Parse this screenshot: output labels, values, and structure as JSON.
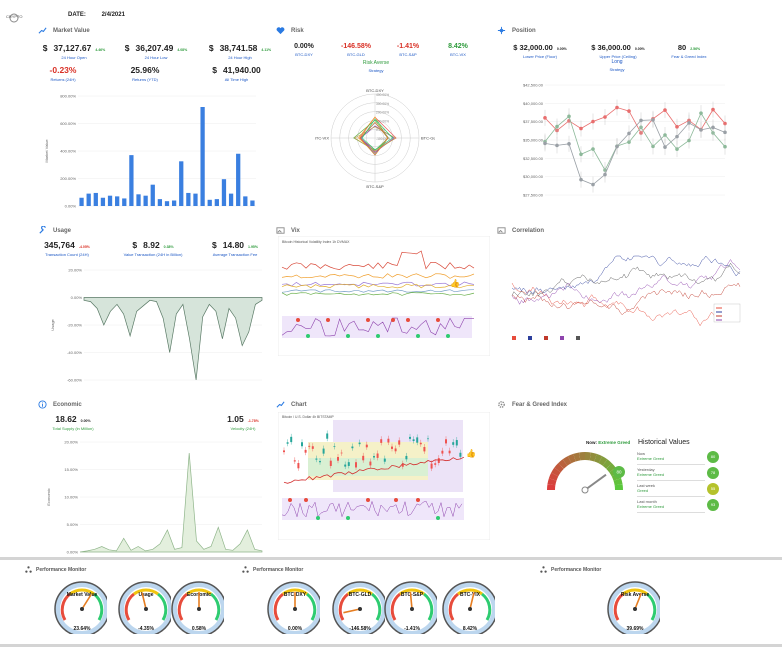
{
  "header": {
    "logo_text": "CRYPTO",
    "date_label": "DATE:",
    "date_value": "2/4/2021"
  },
  "panels": {
    "market_value": {
      "title": "Market Value",
      "kpis": [
        {
          "currency": "$",
          "value": "37,127.67",
          "change": "4.46%",
          "label": "24 Hour Open"
        },
        {
          "currency": "$",
          "value": "36,207.49",
          "change": "4.08%",
          "label": "24 Hour Low"
        },
        {
          "currency": "$",
          "value": "38,741.58",
          "change": "4.11%",
          "label": "24 Hour High"
        },
        {
          "currency": "",
          "value": "-0.23%",
          "change": "",
          "label": "Returns (24H)"
        },
        {
          "currency": "",
          "value": "25.96%",
          "change": "",
          "label": "Returns (YTD)"
        },
        {
          "currency": "$",
          "value": "41,940.00",
          "change": "",
          "label": "All Time High"
        }
      ],
      "chart": {
        "ylabel": "Market Value",
        "yticks": [
          "800.00%",
          "600.00%",
          "400.00%",
          "200.00%",
          "0.00%"
        ],
        "values": [
          60,
          90,
          95,
          60,
          75,
          70,
          55,
          370,
          85,
          75,
          155,
          50,
          35,
          40,
          325,
          95,
          90,
          720,
          45,
          50,
          195,
          90,
          380,
          70,
          40
        ]
      }
    },
    "risk": {
      "title": "Risk",
      "kpis": [
        {
          "value": "0.00%",
          "label": "BTC-DXY",
          "color": "#222"
        },
        {
          "value": "-146.58%",
          "label": "BTC-GLD",
          "color": "#d93025"
        },
        {
          "value": "-1.41%",
          "label": "BTC-S&P",
          "color": "#d93025"
        },
        {
          "value": "8.42%",
          "label": "BTC-VIX",
          "color": "#2e9b3c"
        }
      ],
      "strategy_value": "Risk Averse",
      "strategy_label": "Strategy",
      "radar_axes": [
        "BTC-DXY",
        "BTC-GLD",
        "BTC-S&P",
        "BTC-VIX"
      ],
      "radar_ticks": [
        "400.00%",
        "300.00%",
        "200.00%",
        "100.00%",
        "0.00%",
        "-100.00%"
      ]
    },
    "position": {
      "title": "Position",
      "kpis": [
        {
          "value": "$ 32,000.00",
          "change": "0.00%",
          "label": "Lower Price (Floor)"
        },
        {
          "value": "$ 36,000.00",
          "change": "0.00%",
          "label": "Upper Price (Ceiling)"
        },
        {
          "value": "80",
          "change": "2.56%",
          "label": "Fear & Greed Index"
        }
      ],
      "strategy_value": "Long",
      "strategy_label": "Strategy",
      "yticks": [
        "$42,500.00",
        "$40,000.00",
        "$37,500.00",
        "$35,000.00",
        "$32,500.00",
        "$30,000.00",
        "$27,500.00"
      ]
    },
    "usage": {
      "title": "Usage",
      "kpis": [
        {
          "currency": "",
          "value": "345,764",
          "change": "-4.05%",
          "label": "Transaction Count (24H)"
        },
        {
          "currency": "$",
          "value": "8.92",
          "change": "0.38%",
          "label": "Value Transaction (24H in Billion)"
        },
        {
          "currency": "$",
          "value": "14.80",
          "change": "1.95%",
          "label": "Average Transaction Fee"
        }
      ],
      "chart": {
        "ylabel": "Usage",
        "yticks": [
          "20.00%",
          "0.00%",
          "-20.00%",
          "-40.00%",
          "-60.00%"
        ]
      }
    },
    "vix": {
      "title": "Vix",
      "chart_header": "Bitcoin Historical Volatility Index   1h   DVMAX"
    },
    "correlation": {
      "title": "Correlation"
    },
    "economic": {
      "title": "Economic",
      "kpis": [
        {
          "value": "18.62",
          "change": "0.00%",
          "label": "Total Supply (in Million)"
        },
        {
          "value": "1.05",
          "change": "-1.78%",
          "label": "Velocity (24H)"
        }
      ],
      "chart": {
        "ylabel": "Economic",
        "yticks": [
          "20.00%",
          "15.00%",
          "10.00%",
          "5.00%",
          "0.00%"
        ]
      }
    },
    "chart": {
      "title": "Chart",
      "chart_header": "Bitcoin / U.S. Dollar  4h  BITSTAMP"
    },
    "fear_greed": {
      "title": "Fear & Greed Index",
      "now_label": "Now:",
      "now_value": "Extreme Greed",
      "history_title": "Historical Values",
      "gauge_value": "80",
      "history": [
        {
          "period": "Now",
          "state": "Extreme Greed",
          "value": "80",
          "color": "#5dbb46"
        },
        {
          "period": "Yesterday",
          "state": "Extreme Greed",
          "value": "78",
          "color": "#5dbb46"
        },
        {
          "period": "Last week",
          "state": "Greed",
          "value": "55",
          "color": "#b5c22c"
        },
        {
          "period": "Last month",
          "state": "Extreme Greed",
          "value": "93",
          "color": "#5dbb46"
        }
      ]
    }
  },
  "performance": {
    "title": "Performance Monitor",
    "groups": [
      [
        {
          "label": "Market Value",
          "value": "23.64%",
          "needle": 0.62
        },
        {
          "label": "Usage",
          "value": "-4.35%",
          "needle": 0.45
        },
        {
          "label": "Economic",
          "value": "0.58%",
          "needle": 0.5
        }
      ],
      [
        {
          "label": "BTC-DXY",
          "value": "0.00%",
          "needle": 0.5
        },
        {
          "label": "BTC-GLD",
          "value": "-146.58%",
          "needle": 0.12
        },
        {
          "label": "BTC-S&P",
          "value": "-1.41%",
          "needle": 0.48
        },
        {
          "label": "BTC-VIX",
          "value": "8.42%",
          "needle": 0.55
        }
      ],
      [
        {
          "label": "Risk Averse",
          "value": "39.69%",
          "needle": 0.58
        }
      ]
    ]
  },
  "colors": {
    "accent_blue": "#2a7ae2",
    "positive": "#2e9b3c",
    "negative": "#d93025"
  }
}
